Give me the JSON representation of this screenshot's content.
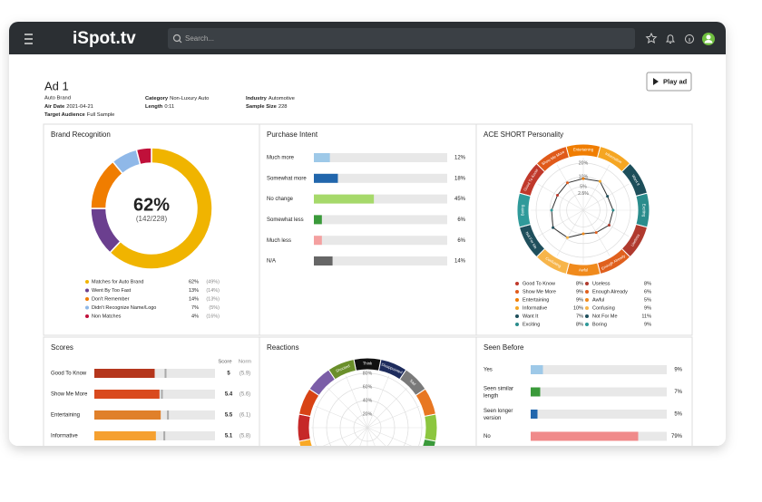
{
  "header": {
    "logo": "iSpot.tv",
    "search_placeholder": "Search..."
  },
  "ad": {
    "title": "Ad 1",
    "brand": "Auto Brand",
    "play_button": "Play ad",
    "meta": [
      {
        "label": "Air Date",
        "value": "2021-04-21"
      },
      {
        "label": "Target Audience",
        "value": "Full Sample"
      },
      {
        "label": "Category",
        "value": "Non-Luxury Auto"
      },
      {
        "label": "Length",
        "value": "0:11"
      },
      {
        "label": "Industry",
        "value": "Automotive"
      },
      {
        "label": "Sample Size",
        "value": "228"
      }
    ]
  },
  "chart_data": [
    {
      "type": "donut",
      "title": "Brand Recognition",
      "center_label": "62%",
      "center_sublabel": "(142/228)",
      "categories": [
        "Matches for Auto Brand",
        "Went By Too Fast",
        "Don't Remember",
        "Didn't Recognize Name/Logo",
        "Non Matches"
      ],
      "values": [
        62,
        13,
        14,
        7,
        4
      ],
      "value_labels": [
        "62%",
        "13%",
        "14%",
        "7%",
        "4%"
      ],
      "norm_values": [
        49,
        14,
        13,
        5,
        16
      ],
      "norm_labels": [
        "(49%)",
        "(14%)",
        "(13%)",
        "(5%)",
        "(16%)"
      ],
      "colors": [
        "#f0b400",
        "#6b3f8f",
        "#f07d00",
        "#8fb8e8",
        "#c0103a"
      ]
    },
    {
      "type": "hbar",
      "title": "Purchase Intent",
      "categories": [
        "Much more",
        "Somewhat more",
        "No change",
        "Somewhat less",
        "Much less",
        "N/A"
      ],
      "values": [
        12,
        18,
        45,
        6,
        6,
        14
      ],
      "value_labels": [
        "12%",
        "18%",
        "45%",
        "6%",
        "6%",
        "14%"
      ],
      "colors": [
        "#9ec9e8",
        "#2166ac",
        "#a6d96a",
        "#3a9a3a",
        "#f4a0a0",
        "#666666"
      ],
      "xlim": [
        0,
        100
      ]
    },
    {
      "type": "radar",
      "title": "ACE SHORT Personality",
      "scale": "sqrt",
      "categories": [
        "Good To Know",
        "Show Me More",
        "Entertaining",
        "Informative",
        "Want It",
        "Exciting",
        "Useless",
        "Enough Already",
        "Awful",
        "Confusing",
        "Not For Me",
        "Boring"
      ],
      "values": [
        8,
        9,
        9,
        10,
        7,
        8,
        8,
        6,
        5,
        9,
        11,
        9
      ],
      "value_labels": [
        "8%",
        "9%",
        "9%",
        "10%",
        "7%",
        "8%",
        "8%",
        "6%",
        "5%",
        "9%",
        "11%",
        "9%"
      ],
      "colors": [
        "#c0392b",
        "#e05a1a",
        "#f07d00",
        "#f5a623",
        "#1d4e5a",
        "#2a8c8c",
        "#b03a2e",
        "#e0601e",
        "#f08a1c",
        "#f7b54a",
        "#1f4f5c",
        "#2f9a9a"
      ],
      "rlim": [
        0,
        20
      ],
      "rticks": [
        {
          "value": 20,
          "label": "20%"
        },
        {
          "value": 10,
          "label": "10%"
        },
        {
          "value": 5,
          "label": "5%"
        },
        {
          "value": 2.5,
          "label": "2.5%"
        }
      ]
    },
    {
      "type": "score",
      "title": "Scores",
      "columns": [
        "Score",
        "Norm"
      ],
      "categories": [
        "Good To Know",
        "Show Me More",
        "Entertaining",
        "Informative"
      ],
      "values": [
        5,
        5.4,
        5.5,
        5.1
      ],
      "norm_values": [
        5.9,
        5.6,
        6.1,
        5.8
      ],
      "norm_labels": [
        "(5.9)",
        "(5.6)",
        "(6.1)",
        "(5.8)"
      ],
      "colors": [
        "#b5361c",
        "#d94a1e",
        "#e0802a",
        "#f5a030"
      ],
      "xlim": [
        0,
        10
      ]
    },
    {
      "type": "polar",
      "title": "Reactions",
      "categories": [
        "Think",
        "Disappointed",
        "Sad",
        null,
        null,
        null,
        null,
        null,
        null,
        null,
        null,
        null,
        null,
        null,
        null,
        "Shocked"
      ],
      "rlim": [
        0,
        80
      ],
      "rticks": [
        {
          "value": 80,
          "label": "80%"
        },
        {
          "value": 60,
          "label": "60%"
        },
        {
          "value": 40,
          "label": "40%"
        },
        {
          "value": 20,
          "label": "20%"
        }
      ]
    },
    {
      "type": "hbar",
      "title": "Seen Before",
      "categories": [
        "Yes",
        "Seen similar length",
        "Seen longer version",
        "No"
      ],
      "values": [
        9,
        7,
        5,
        79
      ],
      "value_labels": [
        "9%",
        "7%",
        "5%",
        "79%"
      ],
      "colors": [
        "#9ec9e8",
        "#3a9a3a",
        "#2166ac",
        "#f08a8a"
      ],
      "xlim": [
        0,
        100
      ]
    }
  ]
}
